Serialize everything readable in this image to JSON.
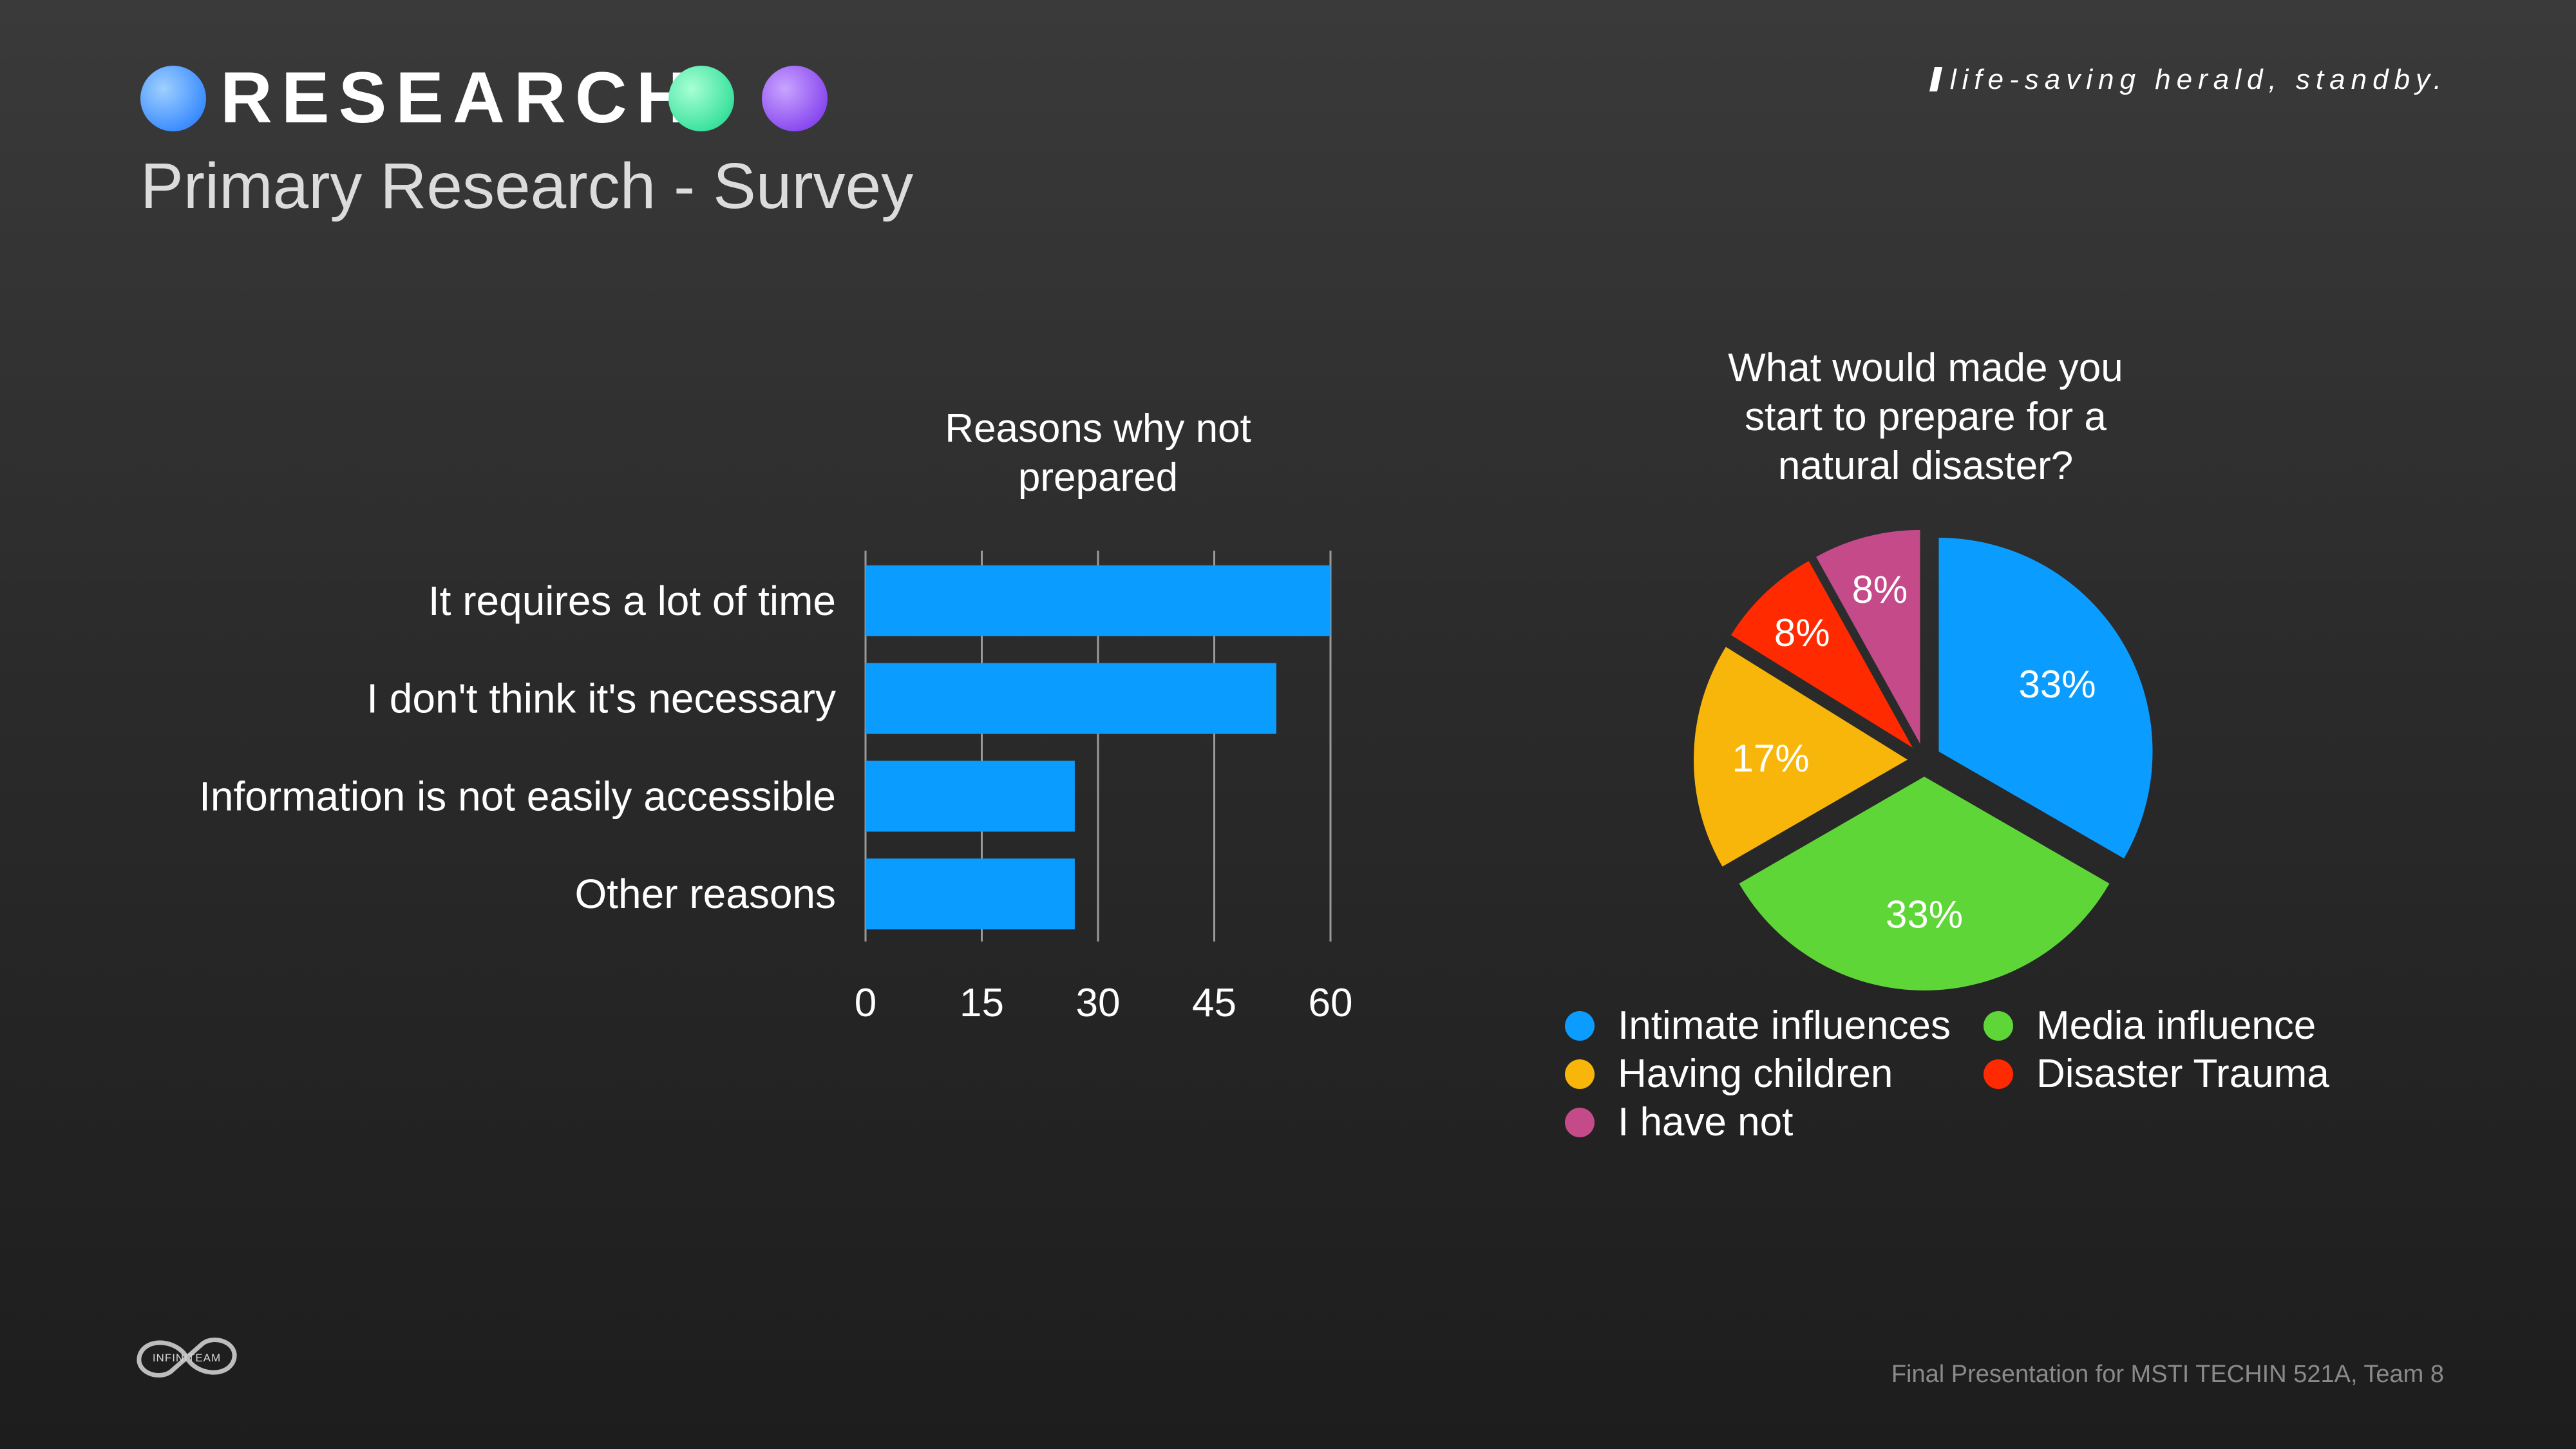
{
  "header": {
    "section": "RESEARCH",
    "subtitle": "Primary Research - Survey",
    "tagline": "life-saving herald, standby."
  },
  "footer": {
    "text": "Final Presentation for MSTI TECHIN 521A, Team 8",
    "logo_text": "INFINITEAM"
  },
  "colors": {
    "bar": "#0a9dff",
    "grid": "#9a9a9a",
    "dot_blue": "#4a97ff",
    "dot_green": "#3fe3a0",
    "dot_purple": "#8c4df0"
  },
  "chart_data": [
    {
      "type": "bar",
      "orientation": "horizontal",
      "title": "Reasons why not prepared",
      "categories": [
        "It requires a lot of time",
        "I don't think it's necessary",
        "Information is not easily accessible",
        "Other reasons"
      ],
      "values": [
        60,
        53,
        27,
        27
      ],
      "xlim": [
        0,
        60
      ],
      "xticks": [
        0,
        15,
        30,
        45,
        60
      ],
      "grid": true,
      "xlabel": "",
      "ylabel": ""
    },
    {
      "type": "pie",
      "title": "What would made you start to prepare for a natural disaster?",
      "slices": [
        {
          "label": "Intimate influences",
          "value": 33,
          "display": "33%",
          "color": "#0a9dff"
        },
        {
          "label": "Media influence",
          "value": 33,
          "display": "33%",
          "color": "#5fd638"
        },
        {
          "label": "Having children",
          "value": 17,
          "display": "17%",
          "color": "#f8b60a"
        },
        {
          "label": "Disaster Trauma",
          "value": 8,
          "display": "8%",
          "color": "#ff2a00"
        },
        {
          "label": "I have not",
          "value": 8,
          "display": "8%",
          "color": "#c44a8a"
        }
      ],
      "legend_position": "bottom"
    }
  ]
}
